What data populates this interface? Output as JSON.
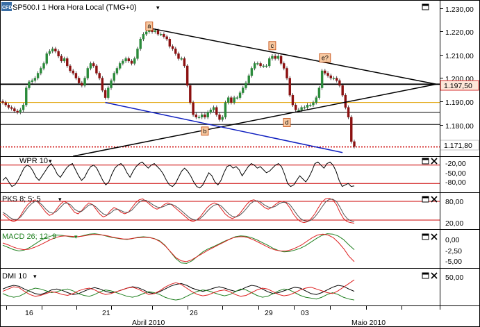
{
  "colors": {
    "price_up": "#2a8a3a",
    "price_down": "#8b1010",
    "trendline_black": "#000000",
    "trendline_blue": "#1020c0",
    "support_orange": "#e0a000",
    "current_price_dotted": "#cc0000",
    "band_line": "#cc0000",
    "rsi_black": "#000000",
    "pks_red": "#dd2020",
    "pks_gray": "#555555",
    "macd_green": "#208020",
    "macd_red": "#e02020",
    "dmi_black": "#000000",
    "dmi_green": "#208020",
    "dmi_red": "#e02020",
    "price_label_bg": "#fde6d8",
    "marker_bg": "#f7c8a0",
    "marker_border": "#c04000"
  },
  "main_pane": {
    "logo": "CFD",
    "title": "SP500.I 1 Hora Hora Local (TMG+0)",
    "menu_arrow": "▾",
    "marker_a": "a",
    "axis_ticks": [
      "1.230,00",
      "1.220,00",
      "1.210,00",
      "1.200,00",
      "1.190,00",
      "1.180,00"
    ],
    "price_labels": {
      "resistance": "1.197,50",
      "current": "1.171,80"
    }
  },
  "wpr_pane": {
    "title": "WPR 10",
    "axis_ticks": [
      "-20,00",
      "-50,00",
      "-80,00"
    ]
  },
  "pks_pane": {
    "title": "PKS 8; 5; 5",
    "axis_ticks": [
      "80,00",
      "20,00"
    ]
  },
  "macd_pane": {
    "title": "MACD 26; 12; 9",
    "axis_ticks": [
      "0,00",
      "-2,50",
      "-5,00"
    ]
  },
  "dmi_pane": {
    "title": "DMI 10",
    "axis_ticks": [
      "50,00"
    ]
  },
  "time_axis": {
    "days": [
      "16",
      "21",
      "26",
      "29",
      "03"
    ],
    "months": [
      "Abril 2010",
      "Maio 2010"
    ]
  },
  "chart_data": {
    "type": "candlestick",
    "title": "SP500.I 1 Hora Hora Local (TMG+0)",
    "ylim": [
      1168,
      1232
    ],
    "x_labels": [
      "16",
      "21",
      "26",
      "29",
      "03"
    ],
    "month_labels": [
      "Abril 2010",
      "Maio 2010"
    ],
    "grid": false,
    "close_series": [
      1190,
      1189,
      1188,
      1187.5,
      1186.5,
      1186,
      1187,
      1189,
      1196,
      1198.5,
      1199,
      1200,
      1202,
      1204,
      1206,
      1210,
      1211,
      1212,
      1211,
      1209,
      1207,
      1208,
      1205,
      1203,
      1202,
      1200,
      1198,
      1197,
      1200,
      1204,
      1206,
      1205,
      1202,
      1200,
      1195,
      1192,
      1196,
      1199,
      1202,
      1204,
      1206,
      1207,
      1208,
      1207,
      1206,
      1208,
      1212,
      1216,
      1218,
      1219,
      1220,
      1219,
      1219.5,
      1218,
      1218,
      1217,
      1216,
      1213,
      1212,
      1210,
      1208,
      1208,
      1205,
      1197,
      1190,
      1185,
      1184,
      1184,
      1185,
      1184,
      1186,
      1187,
      1188,
      1185,
      1183,
      1184,
      1190,
      1192,
      1190,
      1192,
      1192,
      1194,
      1196,
      1198,
      1201,
      1204,
      1206,
      1206,
      1205,
      1205,
      1205,
      1208,
      1209,
      1208,
      1209,
      1206,
      1204,
      1200,
      1193,
      1189,
      1187,
      1187,
      1188,
      1188,
      1189,
      1189,
      1190,
      1192,
      1196,
      1203,
      1202,
      1201,
      1200,
      1200,
      1199,
      1197,
      1193,
      1188,
      1184,
      1174,
      1172
    ],
    "annotations": [
      {
        "label": "a",
        "x_index": 50,
        "y": 1221
      },
      {
        "label": "b",
        "x_index": 69,
        "y": 1178
      },
      {
        "label": "c",
        "x_index": 92,
        "y": 1213
      },
      {
        "label": "d",
        "x_index": 97,
        "y": 1181.5
      },
      {
        "label": "e?",
        "x_index": 110,
        "y": 1208
      }
    ],
    "horizontal_lines": [
      {
        "y": 1197.5,
        "color": "black",
        "label": "1.197,50"
      },
      {
        "y": 1190,
        "color": "orange"
      },
      {
        "y": 1186,
        "color": "black"
      },
      {
        "y": 1181,
        "color": "black"
      },
      {
        "y": 1171.8,
        "color": "red",
        "style": "dotted",
        "label": "1.171,80"
      }
    ],
    "trendlines": [
      {
        "color": "black",
        "from": {
          "x_index": 50,
          "y": 1220.5
        },
        "to": {
          "x_index": 148,
          "y": 1197.5
        }
      },
      {
        "color": "black",
        "from": {
          "x_index": 24,
          "y": 1168
        },
        "to": {
          "x_index": 148,
          "y": 1197.5
        }
      },
      {
        "color": "blue",
        "from": {
          "x_index": 35,
          "y": 1190
        },
        "to": {
          "x_index": 116,
          "y": 1169.5
        }
      }
    ],
    "sub_panels": [
      {
        "name": "WPR 10",
        "ylim": [
          -100,
          0
        ],
        "bands": [
          -20,
          -80
        ],
        "values": [
          -70,
          -60,
          -75,
          -90,
          -85,
          -70,
          -50,
          -30,
          -20,
          -25,
          -40,
          -60,
          -70,
          -55,
          -40,
          -25,
          -15,
          -30,
          -50,
          -60,
          -45,
          -30,
          -20,
          -15,
          -35,
          -55,
          -70,
          -60,
          -40,
          -25,
          -20,
          -30,
          -50,
          -70,
          -85,
          -75,
          -50,
          -30,
          -20,
          -15,
          -25,
          -45,
          -60,
          -40,
          -25,
          -15,
          -10,
          -20,
          -30,
          -20,
          -15,
          -25,
          -35,
          -50,
          -70,
          -85,
          -90,
          -80,
          -60,
          -40,
          -30,
          -40,
          -55,
          -75,
          -90,
          -95,
          -85,
          -65,
          -45,
          -55,
          -75,
          -85,
          -70,
          -45,
          -25,
          -20,
          -30,
          -25,
          -35,
          -55,
          -40,
          -25,
          -15,
          -20,
          -30,
          -25,
          -35,
          -45,
          -40,
          -30,
          -20,
          -15,
          -25,
          -50,
          -80,
          -90,
          -85,
          -70,
          -55,
          -65,
          -75,
          -60,
          -40,
          -15,
          -10,
          -20,
          -30,
          -15,
          -10,
          -20,
          -40,
          -70,
          -90,
          -85,
          -80,
          -90,
          -88
        ]
      },
      {
        "name": "PKS 8; 5; 5",
        "ylim": [
          0,
          100
        ],
        "bands": [
          80,
          20
        ],
        "series": [
          {
            "name": "fast",
            "color": "red",
            "values": [
              40,
              30,
              20,
              15,
              20,
              35,
              55,
              70,
              80,
              85,
              75,
              60,
              45,
              35,
              40,
              55,
              70,
              80,
              75,
              60,
              45,
              40,
              50,
              65,
              75,
              70,
              55,
              40,
              30,
              35,
              50,
              60,
              55,
              45,
              40,
              45,
              60,
              75,
              85,
              88,
              80,
              70,
              60,
              55,
              60,
              70,
              75,
              70,
              60,
              50,
              40,
              30,
              20,
              15,
              20,
              30,
              45,
              60,
              70,
              75,
              70,
              55,
              40,
              30,
              25,
              30,
              40,
              55,
              70,
              82,
              85,
              80,
              70,
              60,
              55,
              60,
              70,
              78,
              80,
              75,
              60,
              40,
              25,
              15,
              12,
              15,
              25,
              40,
              60,
              78,
              88,
              90,
              85,
              70,
              45,
              25,
              15,
              12,
              10
            ]
          },
          {
            "name": "slow",
            "color": "gray",
            "values": [
              45,
              38,
              28,
              22,
              22,
              30,
              45,
              60,
              72,
              80,
              78,
              68,
              55,
              45,
              42,
              48,
              60,
              72,
              75,
              68,
              55,
              48,
              48,
              58,
              68,
              70,
              62,
              50,
              40,
              36,
              42,
              52,
              55,
              50,
              45,
              45,
              52,
              65,
              77,
              84,
              83,
              76,
              68,
              62,
              60,
              64,
              70,
              71,
              66,
              58,
              48,
              38,
              28,
              22,
              20,
              25,
              35,
              48,
              60,
              68,
              71,
              64,
              52,
              40,
              32,
              30,
              35,
              45,
              58,
              72,
              80,
              82,
              77,
              68,
              62,
              60,
              64,
              72,
              77,
              77,
              70,
              55,
              38,
              25,
              18,
              16,
              20,
              30,
              45,
              62,
              78,
              86,
              87,
              80,
              62,
              40,
              25,
              18,
              14
            ]
          }
        ]
      },
      {
        "name": "MACD 26; 12; 9",
        "ylim": [
          -6,
          1.5
        ],
        "ticks": [
          0,
          -2.5,
          -5
        ],
        "series": [
          {
            "name": "macd",
            "color": "green",
            "values": [
              -1.5,
              -2.0,
              -2.5,
              -2.8,
              -2.6,
              -2.0,
              -1.2,
              -0.4,
              0.2,
              0.6,
              0.8,
              0.7,
              0.5,
              0.3,
              0.4,
              0.7,
              1.0,
              1.1,
              0.9,
              0.6,
              0.3,
              0.1,
              -0.1,
              -0.2,
              0.0,
              0.3,
              0.4,
              0.3,
              0.0,
              -0.5,
              -1.5,
              -3.0,
              -4.5,
              -5.5,
              -5.6,
              -5.0,
              -4.0,
              -3.0,
              -2.3,
              -1.8,
              -1.2,
              -0.6,
              -0.1,
              0.4,
              0.6,
              0.5,
              0.2,
              -0.3,
              -0.9,
              -1.5,
              -2.2,
              -2.7,
              -3.0,
              -2.9,
              -2.6,
              -2.2,
              -1.6,
              -0.8,
              0.0,
              0.7,
              1.1,
              1.0,
              0.6,
              -0.2,
              -1.4,
              -2.5
            ]
          },
          {
            "name": "signal",
            "color": "red",
            "values": [
              -1.0,
              -1.4,
              -1.9,
              -2.3,
              -2.5,
              -2.4,
              -2.0,
              -1.5,
              -0.9,
              -0.3,
              0.2,
              0.5,
              0.6,
              0.5,
              0.4,
              0.5,
              0.7,
              0.9,
              0.9,
              0.8,
              0.6,
              0.3,
              0.1,
              -0.1,
              -0.1,
              0.1,
              0.2,
              0.3,
              0.2,
              -0.1,
              -0.7,
              -1.7,
              -3.0,
              -4.3,
              -5.0,
              -5.2,
              -4.8,
              -4.1,
              -3.4,
              -2.7,
              -2.1,
              -1.5,
              -0.9,
              -0.3,
              0.2,
              0.4,
              0.4,
              0.1,
              -0.4,
              -1.0,
              -1.6,
              -2.2,
              -2.6,
              -2.8,
              -2.8,
              -2.5,
              -2.0,
              -1.4,
              -0.6,
              0.2,
              0.8,
              1.0,
              0.8,
              0.2,
              -0.9,
              -2.3,
              -4.0,
              -5.2
            ]
          }
        ]
      },
      {
        "name": "DMI 10",
        "ylim": [
          0,
          70
        ],
        "ticks": [
          50
        ],
        "series": [
          {
            "name": "adx",
            "color": "black",
            "values": [
              30,
              35,
              38,
              36,
              30,
              25,
              20,
              18,
              22,
              28,
              30,
              27,
              22,
              18,
              20,
              25,
              30,
              33,
              30,
              25,
              22,
              24,
              28,
              32,
              35,
              33,
              28,
              22,
              20,
              24,
              30,
              36,
              40,
              42,
              38,
              32,
              28,
              25,
              28,
              32,
              35,
              32,
              28,
              25,
              28,
              34,
              38,
              36,
              30,
              24,
              20,
              22,
              26,
              30,
              34,
              32,
              26,
              20,
              18,
              22,
              28,
              34,
              38,
              36,
              30,
              25
            ]
          },
          {
            "name": "+di",
            "color": "green",
            "values": [
              20,
              15,
              12,
              14,
              20,
              28,
              32,
              30,
              26,
              22,
              24,
              28,
              30,
              26,
              20,
              16,
              14,
              18,
              24,
              28,
              26,
              22,
              18,
              14,
              12,
              15,
              20,
              24,
              22,
              18,
              12,
              8,
              6,
              8,
              14,
              20,
              25,
              28,
              26,
              22,
              18,
              15,
              18,
              24,
              30,
              28,
              22,
              16,
              12,
              14,
              20,
              26,
              30,
              28,
              22,
              16,
              12,
              10,
              8,
              12,
              18,
              22,
              18,
              12,
              8,
              6
            ]
          },
          {
            "name": "-di",
            "color": "red",
            "values": [
              25,
              30,
              35,
              33,
              25,
              18,
              14,
              16,
              20,
              24,
              22,
              18,
              16,
              20,
              26,
              30,
              32,
              28,
              22,
              18,
              20,
              24,
              28,
              32,
              34,
              30,
              24,
              18,
              20,
              26,
              34,
              40,
              44,
              40,
              32,
              24,
              18,
              15,
              17,
              22,
              26,
              28,
              24,
              18,
              14,
              16,
              22,
              28,
              32,
              30,
              24,
              18,
              15,
              17,
              22,
              28,
              32,
              34,
              30,
              26,
              22,
              20,
              26,
              34,
              42,
              50
            ]
          }
        ]
      }
    ]
  }
}
